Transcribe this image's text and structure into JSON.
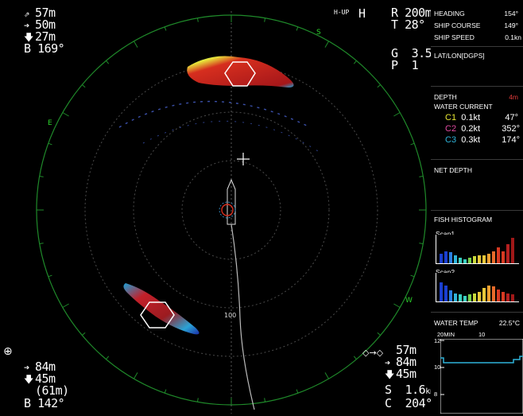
{
  "mode": "H-UP",
  "mode_glyph": "H",
  "range": {
    "r_label": "R",
    "r_value": "200m",
    "t_label": "T",
    "t_value": "28°"
  },
  "gain": {
    "g_label": "G",
    "g_value": "3.5",
    "p_label": "P",
    "p_value": "1"
  },
  "top_left": {
    "depths": [
      "57m",
      "50m",
      "27m"
    ],
    "b_label": "B",
    "b_value": "169°"
  },
  "bottom_left": {
    "depths": [
      "84m",
      "45m",
      "(61m)"
    ],
    "b_label": "B",
    "b_value": "142°"
  },
  "bottom_right": {
    "depths": [
      "57m",
      "84m",
      "45m"
    ],
    "s_label": "S",
    "s_value": "1.6",
    "s_unit": "kn",
    "c_label": "C",
    "c_value": "204°"
  },
  "bearing_labels": {
    "s": "S",
    "e": "E",
    "w": "W",
    "mid": "100"
  },
  "panel": {
    "heading_label": "HEADING",
    "heading_value": "154°",
    "course_label": "SHIP COURSE",
    "course_value": "149°",
    "speed_label": "SHIP SPEED",
    "speed_value": "0.1kn",
    "latlon_label": "LAT/LON[DGPS]",
    "depth_label": "DEPTH",
    "depth_value": "4m",
    "current_label": "WATER CURRENT",
    "currents": [
      {
        "name": "C1",
        "speed": "0.1kt",
        "dir": "47°",
        "color": "#e6e633"
      },
      {
        "name": "C2",
        "speed": "0.2kt",
        "dir": "352°",
        "color": "#e04aa0"
      },
      {
        "name": "C3",
        "speed": "0.3kt",
        "dir": "174°",
        "color": "#2fb3d9"
      }
    ],
    "net_depth_label": "NET DEPTH",
    "histogram_label": "FISH HISTOGRAM",
    "scan1_label": "Scan1",
    "scan2_label": "Scan2",
    "scan1_values": [
      0.35,
      0.45,
      0.4,
      0.3,
      0.2,
      0.15,
      0.2,
      0.25,
      0.3,
      0.3,
      0.35,
      0.45,
      0.6,
      0.45,
      0.7,
      0.95
    ],
    "scan2_values": [
      0.7,
      0.6,
      0.4,
      0.3,
      0.25,
      0.2,
      0.25,
      0.3,
      0.35,
      0.5,
      0.6,
      0.55,
      0.45,
      0.35,
      0.3,
      0.25
    ],
    "water_temp_label": "WATER TEMP",
    "water_temp_value": "22.5°C",
    "temp_axis": {
      "x_left": "20MIN",
      "x_mid": "10",
      "y_labels": [
        "12",
        "10",
        "8"
      ]
    }
  }
}
